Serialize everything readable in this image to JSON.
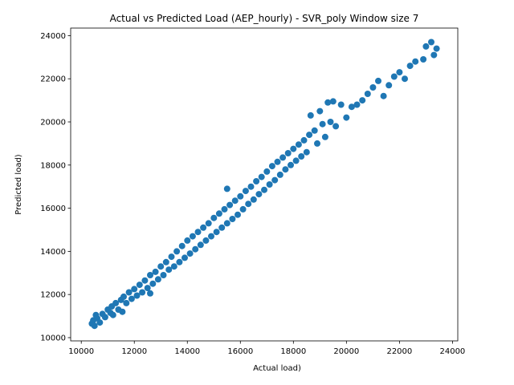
{
  "chart_data": {
    "type": "scatter",
    "title": "Actual vs Predicted Load (AEP_hourly) - SVR_poly Window size 7",
    "xlabel": "Actual load)",
    "ylabel": "Predicted load)",
    "xlim": [
      9600,
      24200
    ],
    "ylim": [
      9850,
      24350
    ],
    "x_ticks": [
      10000,
      12000,
      14000,
      16000,
      18000,
      20000,
      22000,
      24000
    ],
    "y_ticks": [
      10000,
      12000,
      14000,
      16000,
      18000,
      20000,
      22000,
      24000
    ],
    "x_tick_labels": [
      "10000",
      "12000",
      "14000",
      "16000",
      "18000",
      "20000",
      "22000",
      "24000"
    ],
    "y_tick_labels": [
      "10000",
      "12000",
      "14000",
      "16000",
      "18000",
      "20000",
      "22000",
      "24000"
    ],
    "grid": false,
    "legend": "none",
    "marker_color": "#1f77b4",
    "series": [
      {
        "points": [
          [
            10400,
            10650
          ],
          [
            10450,
            10800
          ],
          [
            10500,
            10550
          ],
          [
            10550,
            11050
          ],
          [
            10600,
            10900
          ],
          [
            10700,
            10700
          ],
          [
            10800,
            11100
          ],
          [
            10900,
            10950
          ],
          [
            11000,
            11300
          ],
          [
            11100,
            11150
          ],
          [
            11150,
            11450
          ],
          [
            11200,
            11050
          ],
          [
            11300,
            11600
          ],
          [
            11400,
            11300
          ],
          [
            11500,
            11750
          ],
          [
            11550,
            11200
          ],
          [
            11600,
            11900
          ],
          [
            11700,
            11600
          ],
          [
            11800,
            12100
          ],
          [
            11900,
            11800
          ],
          [
            12000,
            12250
          ],
          [
            12100,
            11950
          ],
          [
            12200,
            12450
          ],
          [
            12300,
            12100
          ],
          [
            12400,
            12650
          ],
          [
            12500,
            12300
          ],
          [
            12600,
            12050
          ],
          [
            12600,
            12900
          ],
          [
            12700,
            12500
          ],
          [
            12800,
            13050
          ],
          [
            12900,
            12700
          ],
          [
            13000,
            13300
          ],
          [
            13100,
            12900
          ],
          [
            13200,
            13500
          ],
          [
            13300,
            13150
          ],
          [
            13400,
            13750
          ],
          [
            13500,
            13300
          ],
          [
            13600,
            14000
          ],
          [
            13700,
            13500
          ],
          [
            13800,
            14250
          ],
          [
            13900,
            13700
          ],
          [
            14000,
            14500
          ],
          [
            14100,
            13900
          ],
          [
            14200,
            14700
          ],
          [
            14300,
            14100
          ],
          [
            14400,
            14900
          ],
          [
            14500,
            14300
          ],
          [
            14600,
            15100
          ],
          [
            14700,
            14500
          ],
          [
            14800,
            15300
          ],
          [
            14900,
            14700
          ],
          [
            15000,
            15550
          ],
          [
            15100,
            14900
          ],
          [
            15200,
            15750
          ],
          [
            15300,
            15100
          ],
          [
            15400,
            15950
          ],
          [
            15500,
            16900
          ],
          [
            15500,
            15300
          ],
          [
            15600,
            16150
          ],
          [
            15700,
            15500
          ],
          [
            15800,
            16350
          ],
          [
            15900,
            15700
          ],
          [
            16000,
            16550
          ],
          [
            16100,
            15950
          ],
          [
            16200,
            16800
          ],
          [
            16300,
            16200
          ],
          [
            16400,
            17000
          ],
          [
            16500,
            16400
          ],
          [
            16600,
            17250
          ],
          [
            16700,
            16650
          ],
          [
            16800,
            17450
          ],
          [
            16900,
            16850
          ],
          [
            17000,
            17700
          ],
          [
            17100,
            17100
          ],
          [
            17200,
            17950
          ],
          [
            17300,
            17300
          ],
          [
            17400,
            18150
          ],
          [
            17500,
            17550
          ],
          [
            17600,
            18350
          ],
          [
            17700,
            17800
          ],
          [
            17800,
            18550
          ],
          [
            17900,
            18000
          ],
          [
            18000,
            18750
          ],
          [
            18100,
            18200
          ],
          [
            18200,
            18950
          ],
          [
            18300,
            18400
          ],
          [
            18400,
            19150
          ],
          [
            18500,
            18600
          ],
          [
            18600,
            19400
          ],
          [
            18650,
            20300
          ],
          [
            18800,
            19600
          ],
          [
            18900,
            19000
          ],
          [
            19000,
            20500
          ],
          [
            19100,
            19900
          ],
          [
            19200,
            19300
          ],
          [
            19300,
            20900
          ],
          [
            19400,
            20000
          ],
          [
            19500,
            20950
          ],
          [
            19600,
            19800
          ],
          [
            19800,
            20800
          ],
          [
            20000,
            20200
          ],
          [
            20200,
            20700
          ],
          [
            20400,
            20800
          ],
          [
            20600,
            21000
          ],
          [
            20800,
            21300
          ],
          [
            21000,
            21600
          ],
          [
            21200,
            21900
          ],
          [
            21400,
            21200
          ],
          [
            21600,
            21700
          ],
          [
            21800,
            22100
          ],
          [
            22000,
            22300
          ],
          [
            22200,
            22000
          ],
          [
            22400,
            22600
          ],
          [
            22600,
            22800
          ],
          [
            22900,
            22900
          ],
          [
            23000,
            23500
          ],
          [
            23200,
            23700
          ],
          [
            23300,
            23100
          ],
          [
            23400,
            23400
          ]
        ]
      }
    ]
  }
}
